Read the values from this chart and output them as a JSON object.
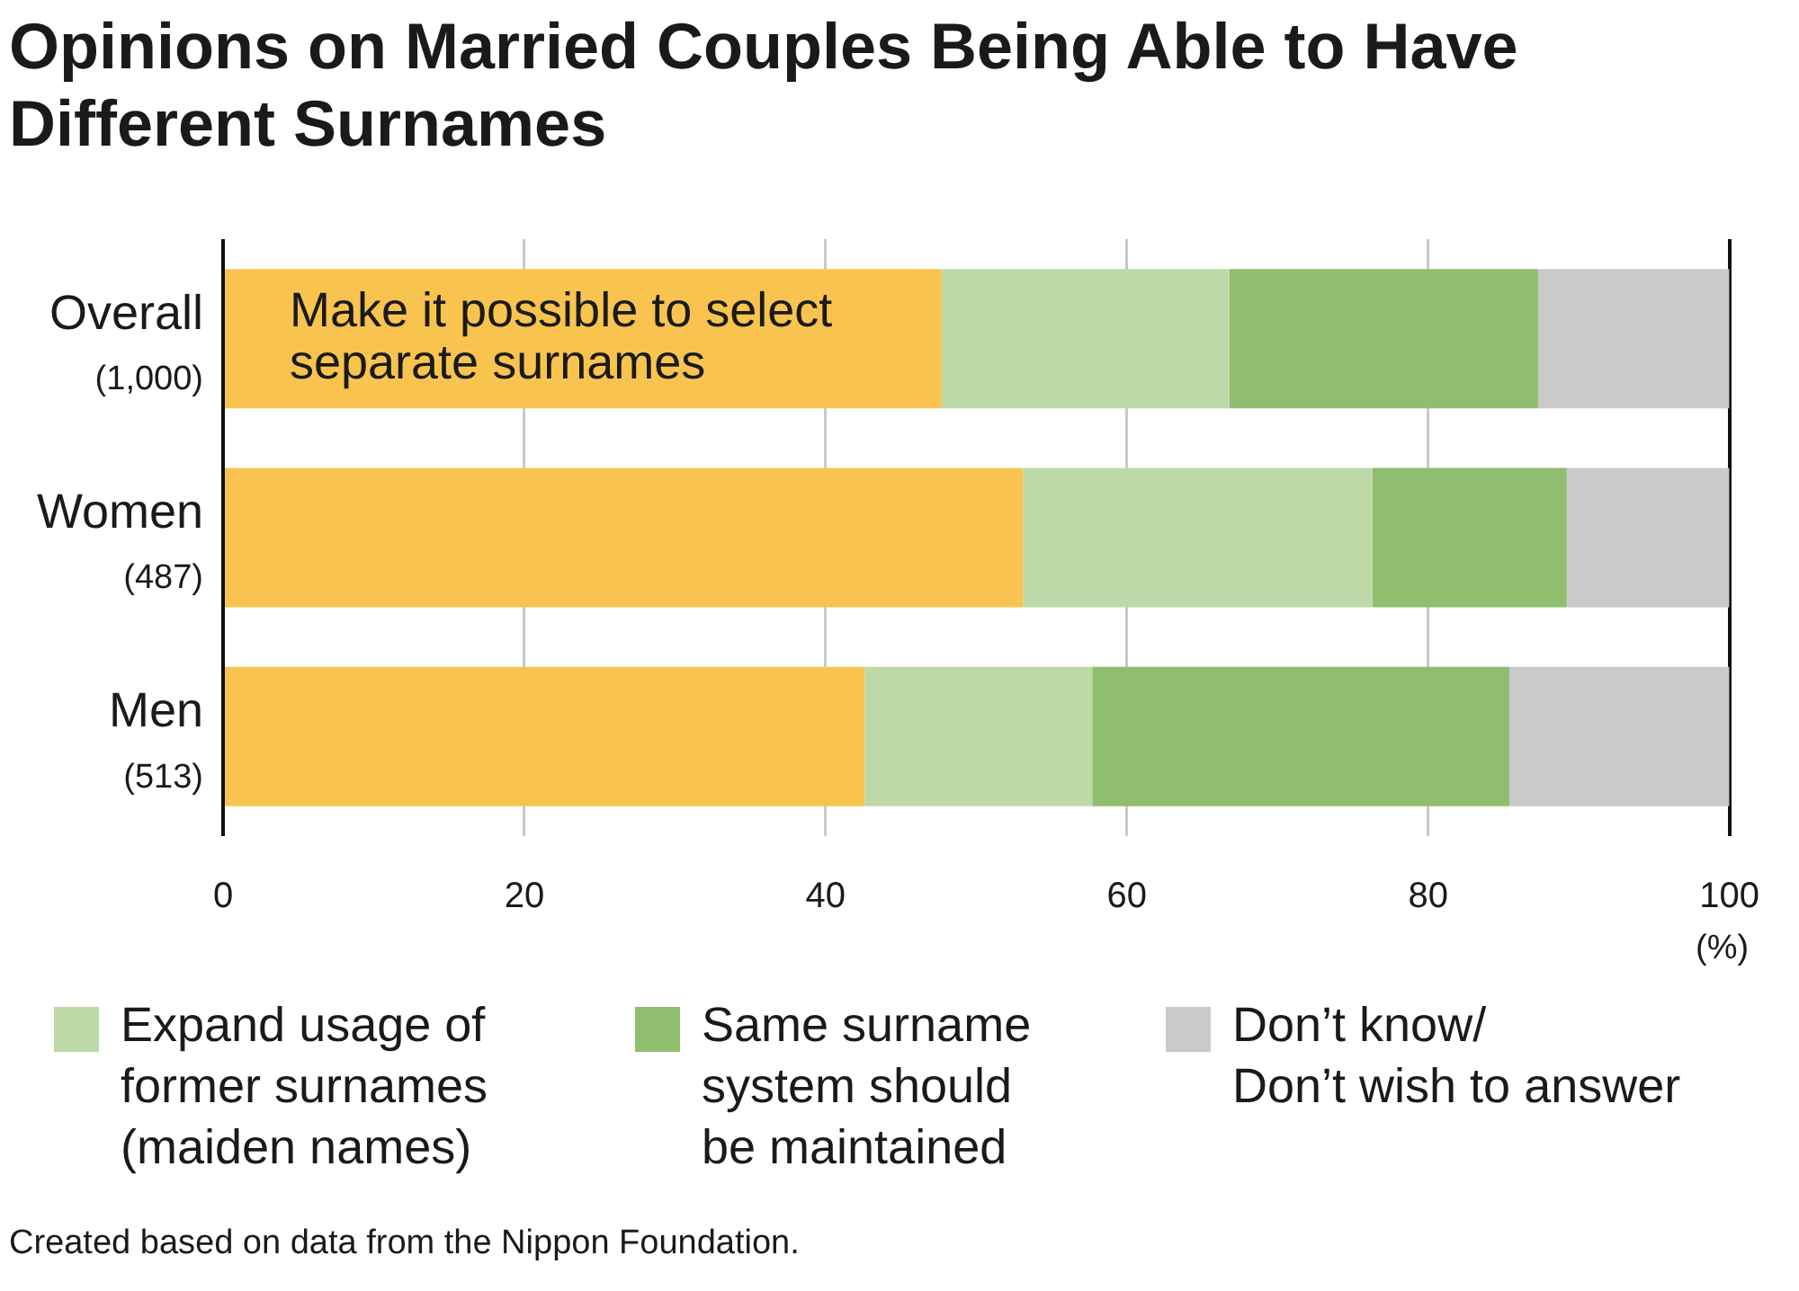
{
  "chart_data": {
    "type": "bar",
    "orientation": "horizontal",
    "stacked": true,
    "title": "Opinions on Married Couples Being Able to Have Different Surnames",
    "xlabel": "(%)",
    "categories": [
      "Overall (1,000)",
      "Women (487)",
      "Men (513)"
    ],
    "series": [
      {
        "name": "Make it possible to select separate surnames",
        "color": "#f8c44f",
        "values": [
          47.7,
          53.1,
          42.6
        ]
      },
      {
        "name": "Expand usage of former surnames (maiden names)",
        "color": "#bdd9a8",
        "values": [
          19.1,
          23.2,
          15.1
        ]
      },
      {
        "name": "Same surname system should be maintained",
        "color": "#8fbe6e",
        "values": [
          20.5,
          12.9,
          27.7
        ]
      },
      {
        "name": "Don’t know/ Don’t wish to answer",
        "color": "#cacaca",
        "values": [
          12.7,
          10.8,
          14.6
        ]
      }
    ],
    "xlim": [
      0,
      100
    ],
    "xticks": [
      0,
      20,
      40,
      60,
      80,
      100
    ],
    "grid": "x",
    "legend": "bottom",
    "annotations": [
      "Created based on data from the Nippon Foundation."
    ]
  }
}
